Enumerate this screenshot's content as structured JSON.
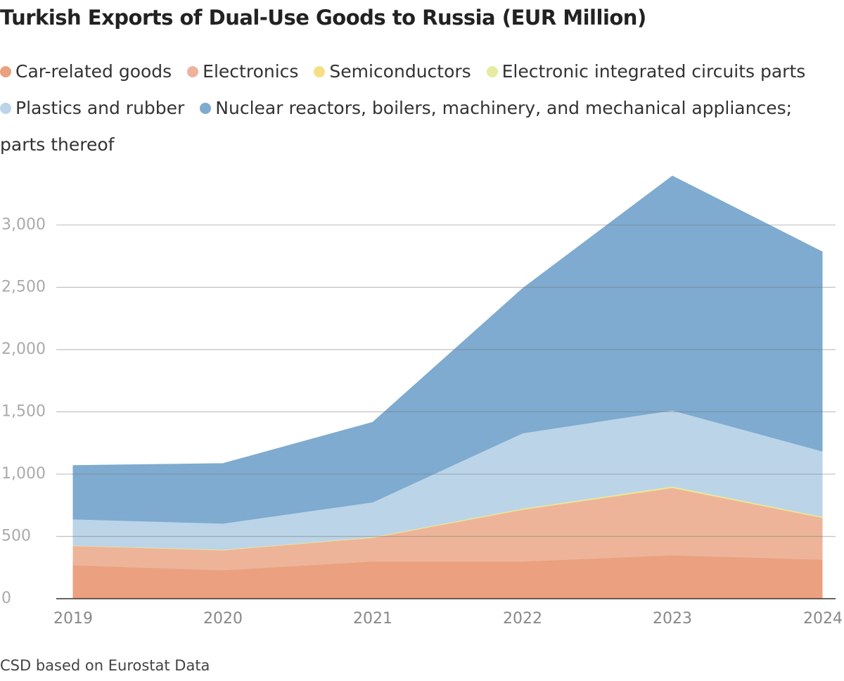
{
  "chart_data": {
    "type": "stacked_area",
    "title": "Turkish Exports of Dual-Use Goods to Russia (EUR Million)",
    "source": "CSD based on Eurostat Data",
    "categories": [
      "2019",
      "2020",
      "2021",
      "2022",
      "2023",
      "2024"
    ],
    "series": [
      {
        "name": "Car-related goods",
        "color": "#eba07f",
        "values": [
          270,
          230,
          300,
          300,
          350,
          315
        ]
      },
      {
        "name": "Electronics",
        "color": "#edb49a",
        "values": [
          155,
          160,
          190,
          415,
          540,
          335
        ]
      },
      {
        "name": "Semiconductors",
        "color": "#f7de85",
        "values": [
          2,
          3,
          3,
          5,
          5,
          5
        ]
      },
      {
        "name": "Electronic integrated circuits parts",
        "color": "#e5eb9f",
        "values": [
          2,
          2,
          3,
          5,
          8,
          5
        ]
      },
      {
        "name": "Plastics and rubber",
        "color": "#bcd4e8",
        "values": [
          210,
          210,
          280,
          605,
          610,
          525
        ]
      },
      {
        "name": "Nuclear reactors, boilers, machinery, and mechanical appliances; parts thereof",
        "color": "#7eabcf",
        "values": [
          430,
          480,
          640,
          1160,
          1880,
          1600
        ]
      }
    ],
    "ylim": [
      0,
      3400
    ],
    "yticks": [
      0,
      500,
      {
        "value": 1000,
        "label": "1,000"
      },
      {
        "value": 1500,
        "label": "1,500"
      },
      {
        "value": 2000,
        "label": "2,000"
      },
      {
        "value": 2500,
        "label": "2,500"
      },
      {
        "value": 3000,
        "label": "3,000"
      }
    ],
    "grid": true
  }
}
